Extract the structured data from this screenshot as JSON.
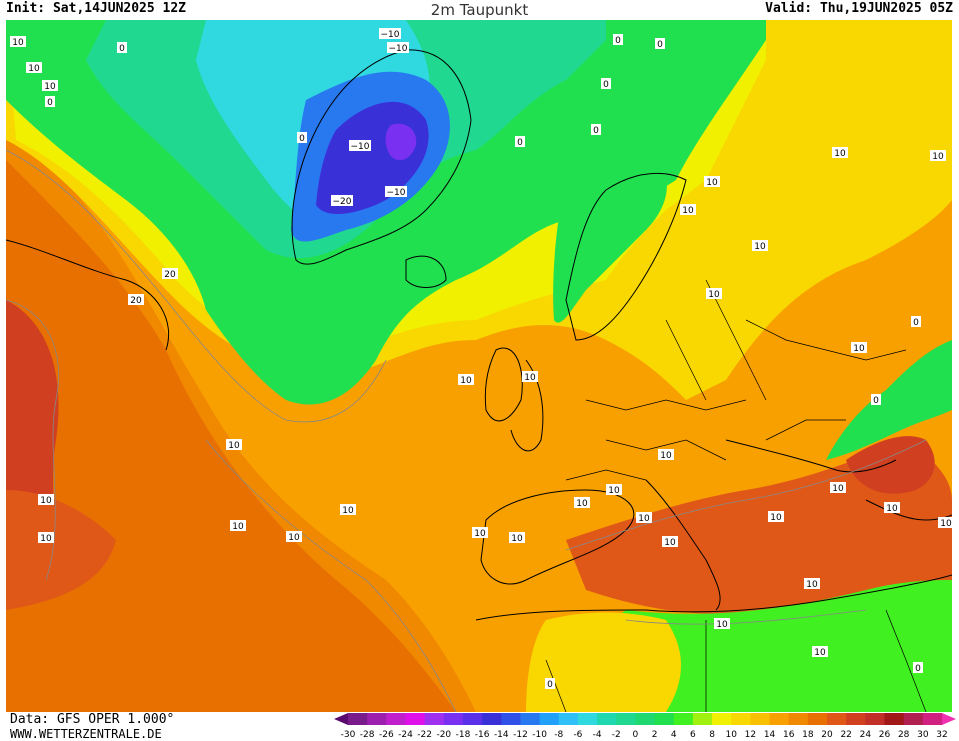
{
  "header": {
    "init": "Init: Sat,14JUN2025 12Z",
    "title": "2m Taupunkt",
    "valid": "Valid: Thu,19JUN2025 05Z"
  },
  "footer": {
    "data": "Data: GFS OPER 1.000°",
    "site": "WWW.WETTERZENTRALE.DE"
  },
  "legend": {
    "ticks": [
      "-30",
      "-28",
      "-26",
      "-24",
      "-22",
      "-20",
      "-18",
      "-16",
      "-14",
      "-12",
      "-10",
      "-8",
      "-6",
      "-4",
      "-2",
      "0",
      "2",
      "4",
      "6",
      "8",
      "10",
      "12",
      "14",
      "16",
      "18",
      "20",
      "22",
      "24",
      "26",
      "28",
      "30",
      "32"
    ],
    "colors": [
      "#5a0a6e",
      "#7a1b8c",
      "#9c1fae",
      "#c020cc",
      "#e010e8",
      "#a030f0",
      "#7a30f0",
      "#5a30e8",
      "#3a30d8",
      "#3050e8",
      "#2878f0",
      "#20a0f8",
      "#30c0f8",
      "#30d8e0",
      "#20d8b0",
      "#20d890",
      "#20d870",
      "#20e050",
      "#40f020",
      "#a0f010",
      "#f0f000",
      "#f8d800",
      "#f8c000",
      "#f8a000",
      "#f08800",
      "#e87000",
      "#e05818",
      "#d04020",
      "#c03028",
      "#a01818",
      "#b02050",
      "#d02080",
      "#f030b0"
    ]
  },
  "map": {
    "colors": {
      "ocean_warm": "#e87000",
      "warm": "#f08800",
      "mild": "#f8a000",
      "yellow": "#f8d800",
      "lightyellow": "#f0f000",
      "green": "#20e050",
      "lightgreen": "#40f020",
      "cyan": "#20d890",
      "blue": "#3a30d8",
      "darkblue": "#5a30e8",
      "red": "#d04020"
    },
    "contour_labels": [
      "10",
      "0",
      "10",
      "10",
      "0",
      "0",
      "0",
      "−10",
      "−10",
      "−10",
      "−20",
      "−10",
      "0",
      "0",
      "0",
      "0",
      "10",
      "10",
      "10",
      "10",
      "10",
      "20",
      "20",
      "10",
      "10",
      "10",
      "10",
      "10",
      "10",
      "10",
      "10",
      "10",
      "10",
      "10",
      "10",
      "10",
      "10",
      "10",
      "10",
      "0",
      "0",
      "10",
      "10",
      "10",
      "10",
      "10",
      "0",
      "10",
      "10",
      "10",
      "0",
      "0"
    ]
  }
}
